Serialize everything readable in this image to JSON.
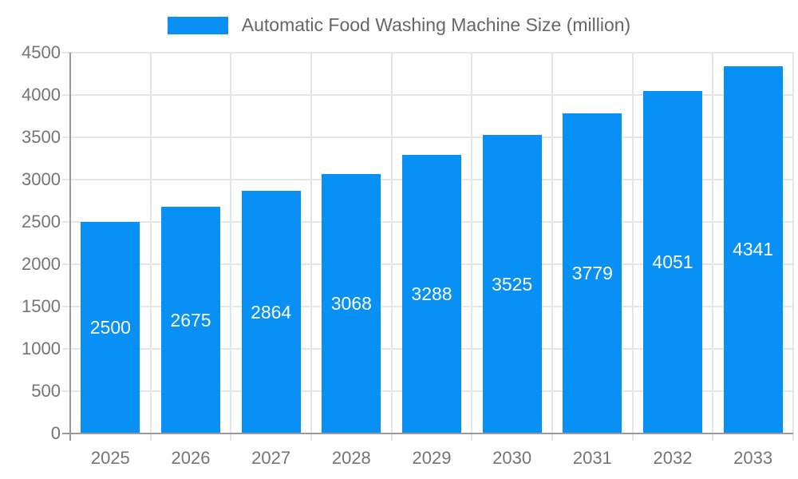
{
  "legend": {
    "label": "Automatic Food Washing Machine Size (million)"
  },
  "chart_data": {
    "type": "bar",
    "title": "Automatic Food Washing Machine Size (million)",
    "categories": [
      "2025",
      "2026",
      "2027",
      "2028",
      "2029",
      "2030",
      "2031",
      "2032",
      "2033"
    ],
    "series": [
      {
        "name": "Automatic Food Washing Machine Size (million)",
        "values": [
          2500,
          2675,
          2864,
          3068,
          3288,
          3525,
          3779,
          4051,
          4341
        ]
      }
    ],
    "xlabel": "",
    "ylabel": "",
    "ylim": [
      0,
      4500
    ],
    "ytick_step": 500,
    "grid": true,
    "legend_position": "top-center",
    "bar_label_position": "inside-center"
  },
  "colors": {
    "bar": "#0990f5",
    "grid": "#e6e6e6",
    "axis": "#9a9a9a",
    "axis_text": "#757575",
    "legend_text": "#666666",
    "bar_label_text": "#ffffff",
    "background": "#ffffff"
  }
}
